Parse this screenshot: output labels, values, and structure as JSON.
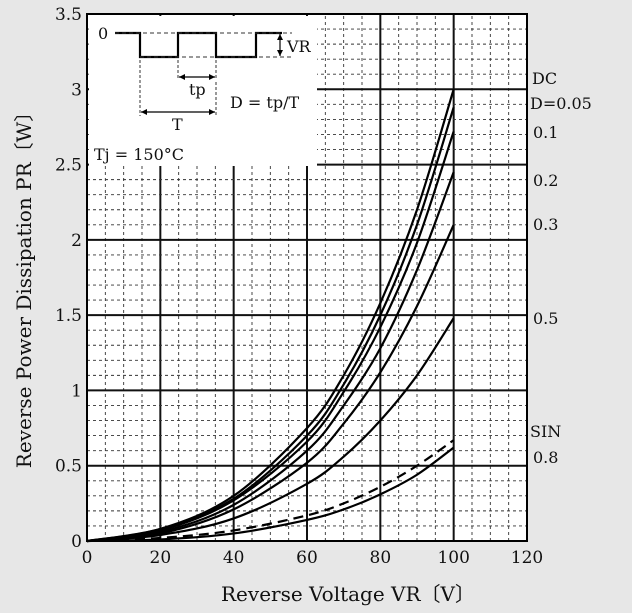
{
  "chart_data": {
    "type": "line",
    "title": "",
    "xlabel": "Reverse Voltage  VR〔V〕",
    "ylabel": "Reverse Power Dissipation  PR〔W〕",
    "xlim": [
      0,
      120
    ],
    "ylim": [
      0,
      3.5
    ],
    "x_ticks": [
      "0",
      "20",
      "40",
      "60",
      "80",
      "100",
      "120"
    ],
    "y_ticks": [
      "0",
      "0.5",
      "1",
      "1.5",
      "2",
      "2.5",
      "3",
      "3.5"
    ],
    "grid": true,
    "series": [
      {
        "name": "DC",
        "label": "DC",
        "style": "solid",
        "points": [
          [
            0,
            0
          ],
          [
            20,
            0.08
          ],
          [
            40,
            0.3
          ],
          [
            60,
            0.75
          ],
          [
            70,
            1.1
          ],
          [
            80,
            1.58
          ],
          [
            90,
            2.2
          ],
          [
            100,
            3.0
          ]
        ]
      },
      {
        "name": "D=0.05",
        "label": "D=0.05",
        "style": "solid",
        "points": [
          [
            0,
            0
          ],
          [
            20,
            0.08
          ],
          [
            40,
            0.28
          ],
          [
            60,
            0.7
          ],
          [
            70,
            1.04
          ],
          [
            80,
            1.5
          ],
          [
            90,
            2.1
          ],
          [
            100,
            2.88
          ]
        ]
      },
      {
        "name": "0.1",
        "label": "0.1",
        "style": "solid",
        "points": [
          [
            0,
            0
          ],
          [
            20,
            0.07
          ],
          [
            40,
            0.27
          ],
          [
            60,
            0.66
          ],
          [
            70,
            0.99
          ],
          [
            80,
            1.42
          ],
          [
            90,
            1.98
          ],
          [
            100,
            2.72
          ]
        ]
      },
      {
        "name": "0.2",
        "label": "0.2",
        "style": "solid",
        "points": [
          [
            0,
            0
          ],
          [
            20,
            0.06
          ],
          [
            40,
            0.24
          ],
          [
            60,
            0.6
          ],
          [
            70,
            0.9
          ],
          [
            80,
            1.28
          ],
          [
            90,
            1.8
          ],
          [
            100,
            2.45
          ]
        ]
      },
      {
        "name": "0.3",
        "label": "0.3",
        "style": "solid",
        "points": [
          [
            0,
            0
          ],
          [
            20,
            0.05
          ],
          [
            40,
            0.21
          ],
          [
            60,
            0.52
          ],
          [
            70,
            0.78
          ],
          [
            80,
            1.12
          ],
          [
            90,
            1.56
          ],
          [
            100,
            2.1
          ]
        ]
      },
      {
        "name": "0.5",
        "label": "0.5",
        "style": "solid",
        "points": [
          [
            0,
            0
          ],
          [
            20,
            0.04
          ],
          [
            40,
            0.15
          ],
          [
            60,
            0.38
          ],
          [
            70,
            0.56
          ],
          [
            80,
            0.8
          ],
          [
            90,
            1.1
          ],
          [
            100,
            1.48
          ]
        ]
      },
      {
        "name": "SIN",
        "label": "SIN",
        "style": "dashed",
        "points": [
          [
            0,
            0
          ],
          [
            20,
            0.02
          ],
          [
            40,
            0.07
          ],
          [
            60,
            0.17
          ],
          [
            70,
            0.25
          ],
          [
            80,
            0.36
          ],
          [
            90,
            0.5
          ],
          [
            100,
            0.67
          ]
        ]
      },
      {
        "name": "0.8",
        "label": "0.8",
        "style": "solid",
        "points": [
          [
            0,
            0
          ],
          [
            20,
            0.01
          ],
          [
            40,
            0.05
          ],
          [
            60,
            0.14
          ],
          [
            70,
            0.21
          ],
          [
            80,
            0.31
          ],
          [
            90,
            0.44
          ],
          [
            100,
            0.62
          ]
        ]
      }
    ],
    "inset": {
      "level_label": "0",
      "amplitude_label": "VR",
      "tp_label": "tp",
      "period_label": "T",
      "duty_formula": "D = tp/T",
      "temperature": "Tj = 150°C"
    }
  }
}
